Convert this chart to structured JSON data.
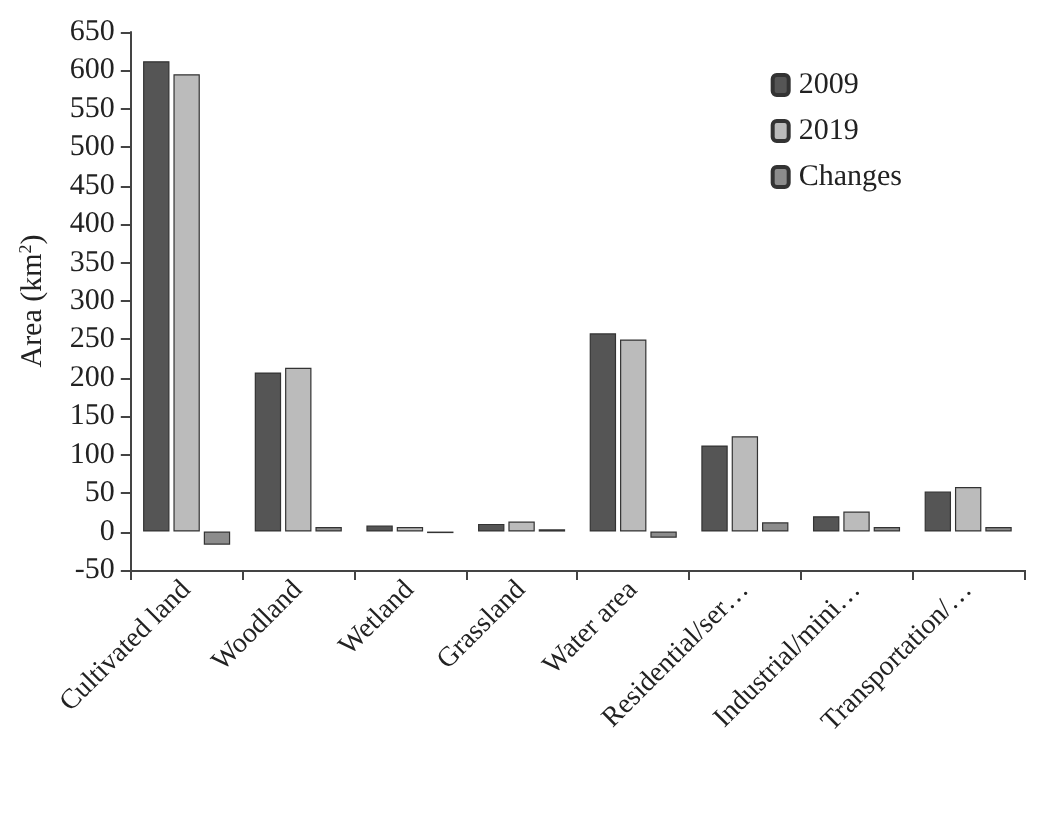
{
  "chart_data": {
    "type": "bar",
    "ylabel": "Area (km$^{2}$)",
    "categories": [
      "Cultivated land",
      "Woodland",
      "Wetland",
      "Grassland",
      "Water area",
      "Residential/ser…",
      "Industrial/mini…",
      "Transportation/…"
    ],
    "series": [
      {
        "name": "2009",
        "color": "#555555",
        "values": [
          612,
          207,
          8,
          10,
          258,
          112,
          20,
          52
        ]
      },
      {
        "name": "2019",
        "color": "#bbbbbb",
        "values": [
          595,
          213,
          6,
          13,
          250,
          124,
          26,
          58
        ]
      },
      {
        "name": "Changes",
        "color": "#8c8c8c",
        "values": [
          -17,
          6,
          -2,
          3,
          -8,
          12,
          6,
          6
        ]
      }
    ],
    "ylim": [
      -50,
      650
    ],
    "yticks": [
      -50,
      0,
      50,
      100,
      150,
      200,
      250,
      300,
      350,
      400,
      450,
      500,
      550,
      600,
      650
    ],
    "grid": false,
    "legend": "top right"
  }
}
